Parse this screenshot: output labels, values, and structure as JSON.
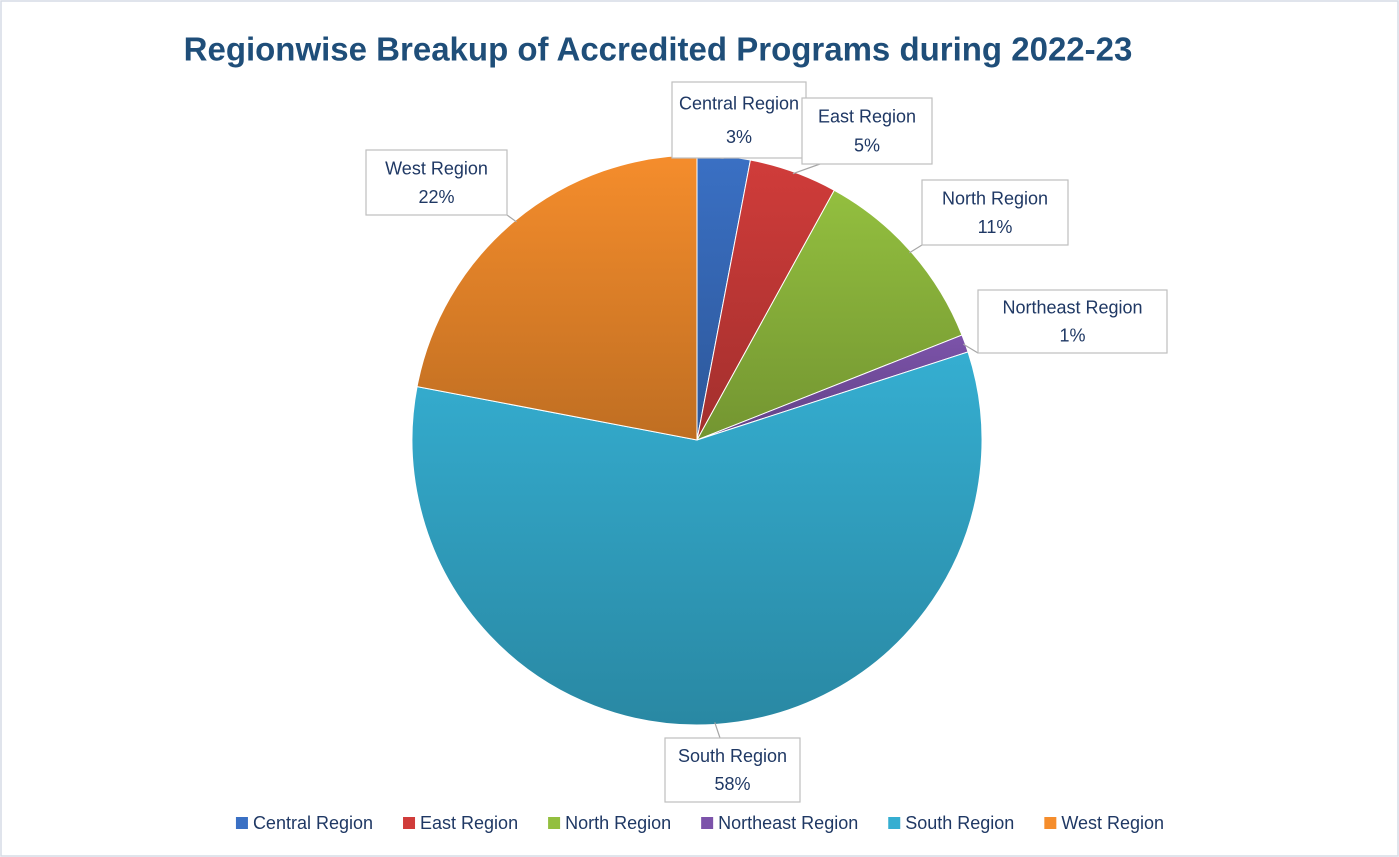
{
  "chart_data": {
    "type": "pie",
    "title": "Regionwise Breakup of Accredited Programs during 2022-23",
    "categories": [
      "Central Region",
      "East Region",
      "North Region",
      "Northeast Region",
      "South Region",
      "West Region"
    ],
    "values": [
      3,
      5,
      11,
      1,
      58,
      22
    ],
    "value_labels": [
      "3%",
      "5%",
      "11%",
      "1%",
      "58%",
      "22%"
    ],
    "colors": [
      "#3a70c4",
      "#d03c3a",
      "#93bf3f",
      "#7c53aa",
      "#35aed1",
      "#f58d2c"
    ],
    "legend": "bottom"
  }
}
